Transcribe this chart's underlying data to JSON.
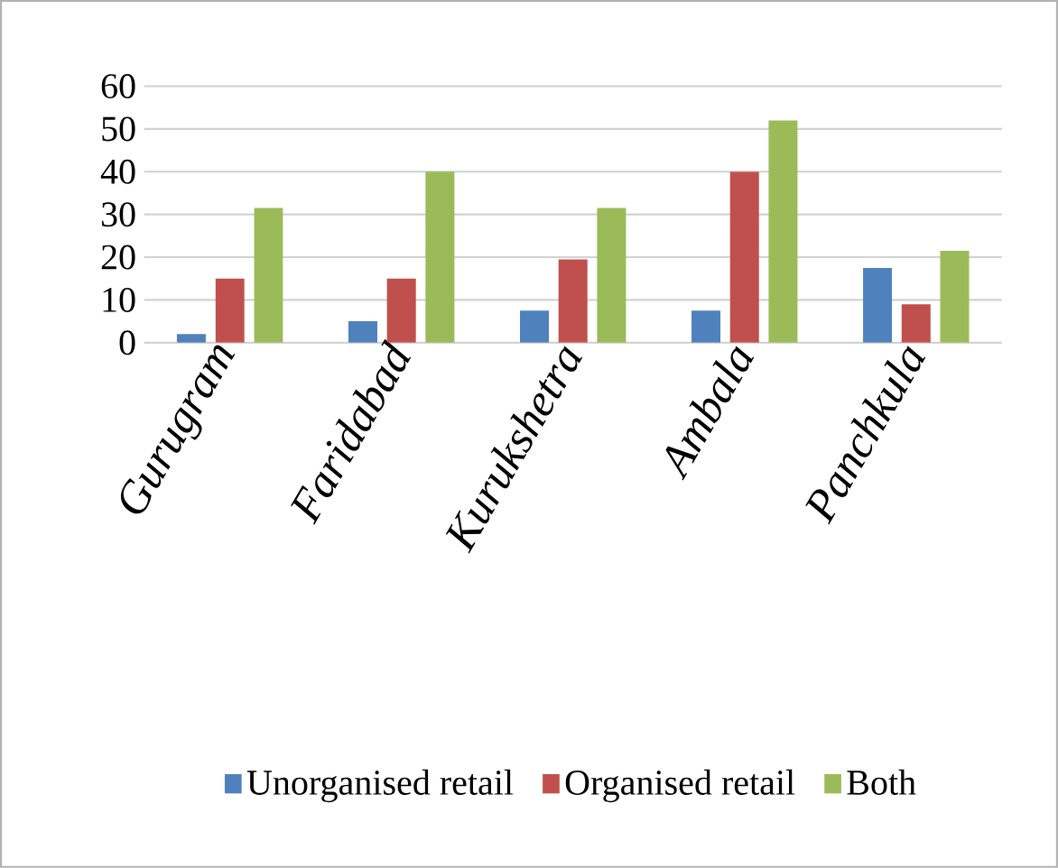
{
  "chart_data": {
    "type": "bar",
    "categories": [
      "Gurugram",
      "Faridabad",
      "Kurukshetra",
      "Ambala",
      "Panchkula"
    ],
    "series": [
      {
        "name": "Unorganised retail",
        "color": "#4f81bd",
        "values": [
          2,
          5,
          7.5,
          7.5,
          17.5
        ]
      },
      {
        "name": "Organised retail",
        "color": "#c0504d",
        "values": [
          15,
          15,
          19.5,
          40,
          9
        ]
      },
      {
        "name": "Both",
        "color": "#9bbb59",
        "values": [
          31.5,
          40,
          31.5,
          52,
          21.5
        ]
      }
    ],
    "ylim": [
      0,
      60
    ],
    "yticks": [
      0,
      10,
      20,
      30,
      40,
      50,
      60
    ],
    "grid": "y",
    "legend": "bottom"
  }
}
